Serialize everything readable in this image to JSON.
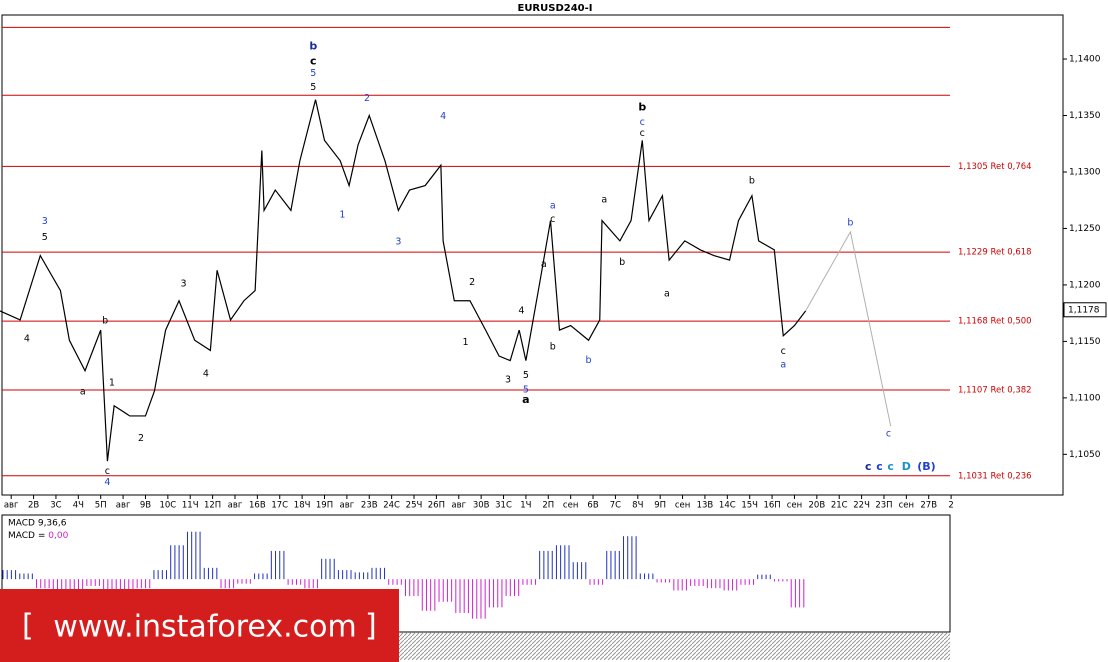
{
  "chart_data": {
    "type": "line",
    "title": "EURUSD240-I",
    "xlim": [
      -0.5,
      47
    ],
    "categories": [
      "авг",
      "2В",
      "3С",
      "4Ч",
      "5П",
      "авг",
      "9В",
      "10С",
      "11Ч",
      "12П",
      "авг",
      "16В",
      "17С",
      "18Ч",
      "19П",
      "авг",
      "23В",
      "24С",
      "25Ч",
      "26П",
      "авг",
      "30В",
      "31С",
      "1Ч",
      "2П",
      "сен",
      "6В",
      "7С",
      "8Ч",
      "9П",
      "сен",
      "13В",
      "14С",
      "15Ч",
      "16П",
      "сен",
      "20В",
      "21С",
      "22Ч",
      "23П",
      "сен",
      "27В",
      "2"
    ],
    "ylim": [
      1.1014,
      1.1439
    ],
    "yticks": [
      {
        "value": 1.14,
        "label": "1,1400"
      },
      {
        "value": 1.135,
        "label": "1,1350"
      },
      {
        "value": 1.13,
        "label": "1,1300"
      },
      {
        "value": 1.125,
        "label": "1,1250"
      },
      {
        "value": 1.12,
        "label": "1,1200"
      },
      {
        "value": 1.115,
        "label": "1,1150"
      },
      {
        "value": 1.11,
        "label": "1,1100"
      },
      {
        "value": 1.105,
        "label": "1,1050"
      }
    ],
    "current_price": {
      "value": 1.1178,
      "label": "1,1178"
    },
    "levels": [
      {
        "value": 1.1428
      },
      {
        "value": 1.1368
      },
      {
        "value": 1.1305,
        "label": "1,1305 Ret 0,764"
      },
      {
        "value": 1.1229,
        "label": "1,1229 Ret 0,618"
      },
      {
        "value": 1.1168,
        "label": "1,1168 Ret 0,500"
      },
      {
        "value": 1.1107,
        "label": "1,1107 Ret 0,382"
      },
      {
        "value": 1.1031,
        "label": "1,1031 Ret 0,236"
      }
    ],
    "level_color": "#d00000",
    "price": {
      "color": "#000000",
      "x": [
        -0.5,
        0.4,
        1.3,
        2.2,
        2.6,
        3.3,
        4.0,
        4.3,
        4.6,
        5.3,
        6.0,
        6.4,
        6.9,
        7.5,
        8.2,
        8.9,
        9.2,
        9.8,
        10.4,
        10.9,
        11.2,
        11.3,
        11.8,
        12.5,
        12.9,
        13.6,
        14.0,
        14.7,
        15.1,
        15.5,
        16.0,
        16.7,
        17.3,
        17.8,
        18.5,
        19.2,
        19.3,
        19.8,
        20.5,
        21.2,
        21.8,
        22.3,
        22.7,
        23.0,
        23.6,
        24.1,
        24.5,
        25.0,
        25.8,
        26.3,
        26.4,
        27.2,
        27.7,
        28.2,
        28.5,
        29.1,
        29.4,
        30.1,
        30.8,
        31.4,
        32.1,
        32.5,
        33.1,
        33.4,
        34.1,
        34.5,
        35.0,
        35.5
      ],
      "values": [
        1.1177,
        1.1169,
        1.1226,
        1.1195,
        1.1151,
        1.1124,
        1.116,
        1.1044,
        1.1093,
        1.1084,
        1.1084,
        1.1106,
        1.116,
        1.1186,
        1.1151,
        1.1142,
        1.1213,
        1.1169,
        1.1186,
        1.1195,
        1.1319,
        1.1266,
        1.1284,
        1.1266,
        1.131,
        1.1364,
        1.1328,
        1.131,
        1.1288,
        1.1324,
        1.135,
        1.131,
        1.1266,
        1.1284,
        1.1288,
        1.1306,
        1.1239,
        1.1186,
        1.1186,
        1.116,
        1.1137,
        1.1133,
        1.116,
        1.1133,
        1.12,
        1.1257,
        1.116,
        1.1164,
        1.1151,
        1.1169,
        1.1257,
        1.1239,
        1.1257,
        1.1328,
        1.1257,
        1.1279,
        1.1222,
        1.1239,
        1.1231,
        1.1226,
        1.1222,
        1.1257,
        1.1279,
        1.1239,
        1.1231,
        1.1155,
        1.1164,
        1.1177
      ]
    },
    "forecast": {
      "color": "#b0b0b0",
      "x": [
        35.5,
        37.5,
        39.3
      ],
      "values": [
        1.1177,
        1.1247,
        1.1075
      ]
    },
    "annotations": [
      {
        "text": "b",
        "x": 13.5,
        "y": 1.1411,
        "color": "#1a2a9a",
        "bold": true
      },
      {
        "text": "c",
        "x": 13.5,
        "y": 1.1398,
        "color": "#000000",
        "bold": true
      },
      {
        "text": "5",
        "x": 13.5,
        "y": 1.1387,
        "color": "#2040d0"
      },
      {
        "text": "5",
        "x": 13.5,
        "y": 1.1375,
        "color": "#000000"
      },
      {
        "text": "2",
        "x": 15.9,
        "y": 1.1365,
        "color": "#2040d0"
      },
      {
        "text": "4",
        "x": 19.3,
        "y": 1.1349,
        "color": "#2040d0"
      },
      {
        "text": "b",
        "x": 28.2,
        "y": 1.1357,
        "color": "#000000",
        "bold": true
      },
      {
        "text": "c",
        "x": 28.2,
        "y": 1.1344,
        "color": "#2040d0"
      },
      {
        "text": "c",
        "x": 28.2,
        "y": 1.1334,
        "color": "#000000"
      },
      {
        "text": "a",
        "x": 24.2,
        "y": 1.127,
        "color": "#2040d0"
      },
      {
        "text": "c",
        "x": 24.2,
        "y": 1.1258,
        "color": "#000000"
      },
      {
        "text": "3",
        "x": 1.5,
        "y": 1.1256,
        "color": "#2040d0"
      },
      {
        "text": "5",
        "x": 1.5,
        "y": 1.1242,
        "color": "#000000"
      },
      {
        "text": "1",
        "x": 14.8,
        "y": 1.1262,
        "color": "#2040d0"
      },
      {
        "text": "3",
        "x": 17.3,
        "y": 1.1238,
        "color": "#2040d0"
      },
      {
        "text": "a",
        "x": 26.5,
        "y": 1.1275,
        "color": "#000000"
      },
      {
        "text": "b",
        "x": 27.3,
        "y": 1.122,
        "color": "#000000"
      },
      {
        "text": "a",
        "x": 29.3,
        "y": 1.1192,
        "color": "#000000"
      },
      {
        "text": "b",
        "x": 33.1,
        "y": 1.1292,
        "color": "#000000"
      },
      {
        "text": "b",
        "x": 37.5,
        "y": 1.1255,
        "color": "#2040d0"
      },
      {
        "text": "a",
        "x": 23.8,
        "y": 1.1218,
        "color": "#000000"
      },
      {
        "text": "2",
        "x": 20.6,
        "y": 1.1202,
        "color": "#000000"
      },
      {
        "text": "4",
        "x": 22.8,
        "y": 1.1177,
        "color": "#000000"
      },
      {
        "text": "3",
        "x": 7.7,
        "y": 1.1201,
        "color": "#000000"
      },
      {
        "text": "b",
        "x": 4.2,
        "y": 1.1168,
        "color": "#000000"
      },
      {
        "text": "4",
        "x": 0.7,
        "y": 1.1152,
        "color": "#000000"
      },
      {
        "text": "1",
        "x": 20.3,
        "y": 1.1149,
        "color": "#000000"
      },
      {
        "text": "b",
        "x": 24.2,
        "y": 1.1145,
        "color": "#000000"
      },
      {
        "text": "b",
        "x": 25.8,
        "y": 1.1133,
        "color": "#2040d0"
      },
      {
        "text": "4",
        "x": 8.7,
        "y": 1.1121,
        "color": "#000000"
      },
      {
        "text": "1",
        "x": 4.5,
        "y": 1.1113,
        "color": "#000000"
      },
      {
        "text": "a",
        "x": 3.2,
        "y": 1.1105,
        "color": "#000000"
      },
      {
        "text": "2",
        "x": 5.8,
        "y": 1.1064,
        "color": "#000000"
      },
      {
        "text": "5",
        "x": 23.0,
        "y": 1.112,
        "color": "#000000"
      },
      {
        "text": "3",
        "x": 22.2,
        "y": 1.1116,
        "color": "#000000"
      },
      {
        "text": "5",
        "x": 23.0,
        "y": 1.1107,
        "color": "#2040d0"
      },
      {
        "text": "a",
        "x": 23.0,
        "y": 1.1098,
        "color": "#000000",
        "bold": true
      },
      {
        "text": "c",
        "x": 4.3,
        "y": 1.1035,
        "color": "#000000"
      },
      {
        "text": "4",
        "x": 4.3,
        "y": 1.1025,
        "color": "#2040d0"
      },
      {
        "text": "c",
        "x": 34.5,
        "y": 1.1141,
        "color": "#000000"
      },
      {
        "text": "a",
        "x": 34.5,
        "y": 1.1129,
        "color": "#2040d0"
      },
      {
        "text": "c",
        "x": 39.2,
        "y": 1.1068,
        "color": "#2040d0"
      },
      {
        "text": "c",
        "x": 38.3,
        "y": 1.1039,
        "color": "#1a2a9a",
        "bold": true
      },
      {
        "text": "c",
        "x": 38.8,
        "y": 1.1039,
        "color": "#2040d0",
        "bold": true
      },
      {
        "text": "c",
        "x": 39.3,
        "y": 1.1039,
        "color": "#1e90c8",
        "bold": true
      },
      {
        "text": "D",
        "x": 40.0,
        "y": 1.1039,
        "color": "#1e90c8",
        "bold": true
      },
      {
        "text": "(B)",
        "x": 40.9,
        "y": 1.1039,
        "color": "#2040d0",
        "bold": true
      }
    ],
    "macd": {
      "name": "MACD 9,36,6",
      "value_text": "MACD = ",
      "value_label": "0,00",
      "up_color": "#2030c0",
      "down_color": "#d020d0",
      "ylim": [
        -45,
        55
      ],
      "values": [
        8,
        5,
        -8,
        -12,
        -10,
        -6,
        -12,
        -14,
        -8,
        8,
        30,
        42,
        10,
        -8,
        -4,
        5,
        25,
        -5,
        -8,
        18,
        8,
        6,
        10,
        -5,
        -15,
        -28,
        -20,
        -30,
        -35,
        -25,
        -15,
        -5,
        25,
        30,
        15,
        -5,
        25,
        38,
        5,
        -3,
        -10,
        -6,
        -8,
        -10,
        -5,
        4,
        -2,
        -25
      ]
    },
    "watermark": "www.instaforex.com"
  }
}
